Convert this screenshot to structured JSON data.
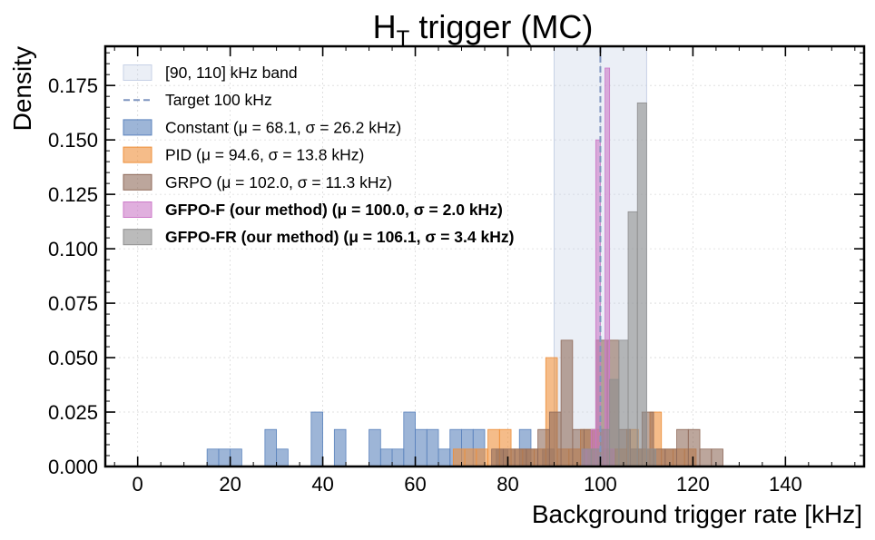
{
  "chart_data": {
    "type": "histogram",
    "title": "H",
    "title_subscript": "T",
    "title_rest": " trigger (MC)",
    "xlabel": "Background trigger rate [kHz]",
    "ylabel": "Density",
    "xlim": [
      -7,
      157
    ],
    "ylim": [
      0,
      0.193
    ],
    "xticks": [
      "0",
      "20",
      "40",
      "60",
      "80",
      "100",
      "120",
      "140"
    ],
    "yticks": [
      "0.000",
      "0.025",
      "0.050",
      "0.075",
      "0.100",
      "0.125",
      "0.150",
      "0.175"
    ],
    "grid": true,
    "legend_position": "top-left",
    "band": {
      "label": "[90, 110] kHz band",
      "x0": 90,
      "x1": 110,
      "color": "#c7d1e6"
    },
    "target": {
      "label": "Target 100 kHz",
      "x": 100,
      "color": "#7f95c0"
    },
    "series": [
      {
        "name": "Constant  (μ = 68.1, σ = 26.2 kHz)",
        "color": "#5b83bd",
        "bold": false,
        "bins": [
          [
            15,
            17.5,
            0.008
          ],
          [
            17.5,
            20,
            0.008
          ],
          [
            20,
            22.5,
            0.008
          ],
          [
            27.5,
            30,
            0.017
          ],
          [
            30,
            32.5,
            0.008
          ],
          [
            37.5,
            40,
            0.025
          ],
          [
            42.5,
            45,
            0.017
          ],
          [
            50,
            52.5,
            0.017
          ],
          [
            52.5,
            55,
            0.008
          ],
          [
            55,
            57.5,
            0.008
          ],
          [
            57.5,
            60,
            0.025
          ],
          [
            60,
            62.5,
            0.017
          ],
          [
            62.5,
            65,
            0.017
          ],
          [
            65,
            67.5,
            0.008
          ],
          [
            67.5,
            70,
            0.017
          ],
          [
            70,
            72.5,
            0.017
          ],
          [
            72.5,
            75,
            0.017
          ],
          [
            77.5,
            80,
            0.008
          ],
          [
            82.5,
            85,
            0.017
          ],
          [
            87.5,
            90,
            0.008
          ]
        ]
      },
      {
        "name": "PID  (μ = 94.6, σ = 13.8 kHz)",
        "color": "#ee8f3a",
        "bold": false,
        "bins": [
          [
            68.2,
            70.7,
            0.008
          ],
          [
            70.7,
            73.2,
            0.008
          ],
          [
            73.2,
            75.7,
            0.008
          ],
          [
            75.7,
            78.2,
            0.017
          ],
          [
            78.2,
            80.7,
            0.017
          ],
          [
            80.7,
            83.2,
            0.008
          ],
          [
            83.2,
            85.7,
            0.008
          ],
          [
            85.7,
            88.2,
            0.008
          ],
          [
            88.2,
            90.7,
            0.05
          ],
          [
            90.7,
            93.2,
            0.008
          ],
          [
            93.2,
            95.7,
            0.008
          ],
          [
            95.7,
            98.2,
            0.017
          ],
          [
            98.2,
            100.7,
            0.017
          ],
          [
            100.7,
            103.2,
            0.008
          ],
          [
            103.2,
            105.7,
            0.008
          ],
          [
            105.7,
            108.2,
            0.017
          ],
          [
            108.2,
            110.7,
            0.008
          ],
          [
            110.7,
            113.2,
            0.025
          ],
          [
            113.2,
            115.7,
            0.008
          ],
          [
            115.7,
            118.2,
            0.008
          ],
          [
            118.2,
            120.7,
            0.008
          ]
        ]
      },
      {
        "name": "GRPO  (μ = 102.0, σ = 11.3 kHz)",
        "color": "#8f6a5a",
        "bold": false,
        "bins": [
          [
            76.5,
            79,
            0.008
          ],
          [
            79,
            81.5,
            0.008
          ],
          [
            81.5,
            84,
            0.008
          ],
          [
            84,
            86.5,
            0.008
          ],
          [
            86.5,
            89,
            0.017
          ],
          [
            89,
            91.5,
            0.025
          ],
          [
            91.5,
            94,
            0.058
          ],
          [
            94,
            96.5,
            0.017
          ],
          [
            96.5,
            99,
            0.017
          ],
          [
            99,
            101.5,
            0.058
          ],
          [
            101.5,
            104,
            0.058
          ],
          [
            104,
            106.5,
            0.017
          ],
          [
            106.5,
            109,
            0.008
          ],
          [
            109,
            111.5,
            0.025
          ],
          [
            111.5,
            114,
            0.008
          ],
          [
            114,
            116.5,
            0.008
          ],
          [
            116.5,
            119,
            0.017
          ],
          [
            119,
            121.5,
            0.017
          ],
          [
            121.5,
            124,
            0.008
          ],
          [
            124,
            126.5,
            0.008
          ]
        ]
      },
      {
        "name": "GFPO-F (our method)  (μ = 100.0, σ = 2.0 kHz)",
        "color": "#cc79c8",
        "bold": true,
        "bins": [
          [
            96,
            97,
            0.008
          ],
          [
            97,
            98,
            0.008
          ],
          [
            98,
            99,
            0.017
          ],
          [
            99,
            100,
            0.15
          ],
          [
            100,
            101,
            0.017
          ],
          [
            101,
            102,
            0.183
          ],
          [
            102,
            103,
            0.008
          ]
        ]
      },
      {
        "name": "GFPO-FR (our method)  (μ = 106.1, σ = 3.4 kHz)",
        "color": "#8e8e8e",
        "bold": true,
        "bins": [
          [
            96,
            98,
            0.008
          ],
          [
            98,
            100,
            0.008
          ],
          [
            100,
            102,
            0.017
          ],
          [
            102,
            104,
            0.04
          ],
          [
            104,
            106,
            0.058
          ],
          [
            106,
            108,
            0.117
          ],
          [
            108,
            110,
            0.167
          ],
          [
            110,
            112,
            0.008
          ]
        ]
      }
    ]
  }
}
